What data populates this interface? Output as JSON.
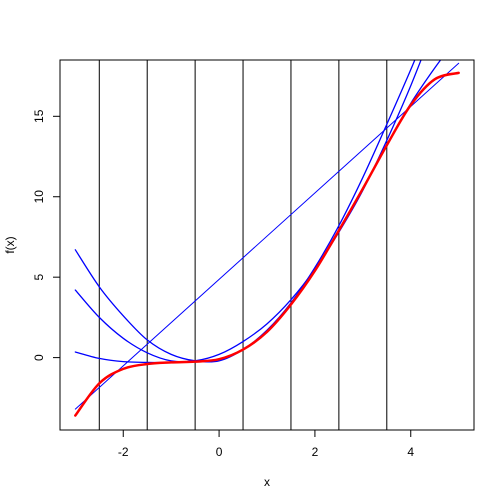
{
  "chart_data": {
    "type": "line",
    "title": "",
    "xlabel": "x",
    "ylabel": "f(x)",
    "xlim": [
      -3.32,
      5.32
    ],
    "ylim": [
      -4.5,
      18.5
    ],
    "x_ticks": [
      -2,
      0,
      2,
      4
    ],
    "y_ticks": [
      0,
      5,
      10,
      15
    ],
    "x_tick_labels": [
      "-2",
      "0",
      "2",
      "4"
    ],
    "y_tick_labels": [
      "0",
      "5",
      "10",
      "15"
    ],
    "grid": false,
    "legend": "none",
    "vertical_lines_x": [
      -2.5,
      -1.5,
      -0.5,
      0.5,
      1.5,
      2.5,
      3.5
    ],
    "colors": {
      "true_function": "#ff0000",
      "approximations": "#0000ff",
      "vlines": "#000000"
    },
    "series": [
      {
        "role": "true function",
        "color": "#ff0000",
        "width": 2.5,
        "x": [
          -3.0,
          -2.5,
          -2.0,
          -1.5,
          -1.0,
          -0.5,
          0.0,
          0.5,
          1.0,
          1.5,
          2.0,
          2.5,
          3.0,
          3.5,
          4.0,
          4.5,
          5.0
        ],
        "y": [
          -3.6,
          -1.6,
          -0.7,
          -0.4,
          -0.3,
          -0.25,
          -0.1,
          0.5,
          1.6,
          3.3,
          5.4,
          7.9,
          10.5,
          13.2,
          15.7,
          17.3,
          17.7
        ]
      },
      {
        "role": "approximation (linear)",
        "color": "#0000ff",
        "width": 1,
        "x": [
          -3.0,
          5.0
        ],
        "y": [
          -3.2,
          18.3
        ]
      },
      {
        "role": "approximation (quadratic, steep)",
        "color": "#0000ff",
        "width": 1.3,
        "x": [
          -3.0,
          -2.5,
          -2.0,
          -1.5,
          -1.0,
          -0.5,
          0.0,
          0.5,
          1.0,
          1.5,
          2.0,
          2.5,
          3.0,
          3.5,
          4.0,
          4.5
        ],
        "y": [
          6.7,
          4.4,
          2.6,
          1.1,
          0.2,
          -0.2,
          -0.2,
          0.5,
          1.7,
          3.4,
          5.6,
          8.2,
          11.2,
          14.5,
          17.9,
          21.5
        ]
      },
      {
        "role": "approximation (quadratic)",
        "color": "#0000ff",
        "width": 1.3,
        "x": [
          -3.0,
          -2.5,
          -2.0,
          -1.5,
          -1.0,
          -0.5,
          0.0,
          0.5,
          1.0,
          1.5,
          2.0,
          2.5,
          3.0,
          3.5,
          4.0,
          4.5
        ],
        "y": [
          4.2,
          2.5,
          1.2,
          0.3,
          -0.2,
          -0.2,
          0.2,
          1.0,
          2.1,
          3.6,
          5.5,
          7.8,
          10.4,
          13.5,
          16.9,
          20.7
        ]
      },
      {
        "role": "approximation (cubic)",
        "color": "#0000ff",
        "width": 1.3,
        "x": [
          -3.0,
          -2.5,
          -2.0,
          -1.5,
          -1.0,
          -0.5,
          0.0,
          0.5,
          1.0,
          1.5,
          2.0,
          2.5,
          3.0,
          3.5,
          4.0,
          4.5,
          5.0
        ],
        "y": [
          0.35,
          -0.05,
          -0.25,
          -0.3,
          -0.3,
          -0.25,
          -0.1,
          0.5,
          1.6,
          3.3,
          5.4,
          7.9,
          10.5,
          13.2,
          15.8,
          18.0,
          20.0
        ]
      }
    ]
  }
}
